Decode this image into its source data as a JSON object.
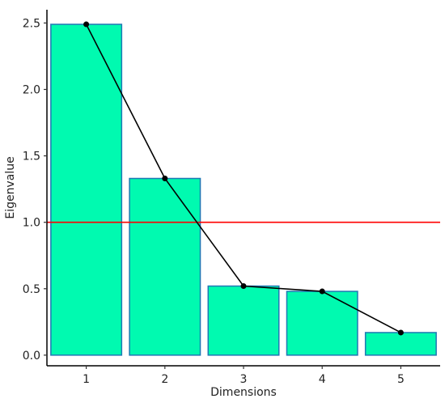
{
  "chart_data": {
    "type": "bar",
    "title": "",
    "xlabel": "Dimensions",
    "ylabel": "Eigenvalue",
    "categories": [
      "1",
      "2",
      "3",
      "4",
      "5"
    ],
    "values": [
      2.49,
      1.33,
      0.52,
      0.48,
      0.17
    ],
    "line_series_values": [
      2.49,
      1.33,
      0.52,
      0.48,
      0.17
    ],
    "reference_line": {
      "y": 1.0,
      "color": "#ff0000"
    },
    "ylim": [
      -0.08,
      2.6
    ],
    "yticks": [
      "0.0",
      "0.5",
      "1.0",
      "1.5",
      "2.0",
      "2.5"
    ],
    "ytick_values": [
      0.0,
      0.5,
      1.0,
      1.5,
      2.0,
      2.5
    ],
    "grid": false,
    "legend": "none",
    "colors": {
      "bar_fill": "#00fab0",
      "bar_stroke": "#1f78b4",
      "line": "#000000",
      "point": "#000000",
      "axis": "#000000"
    }
  }
}
